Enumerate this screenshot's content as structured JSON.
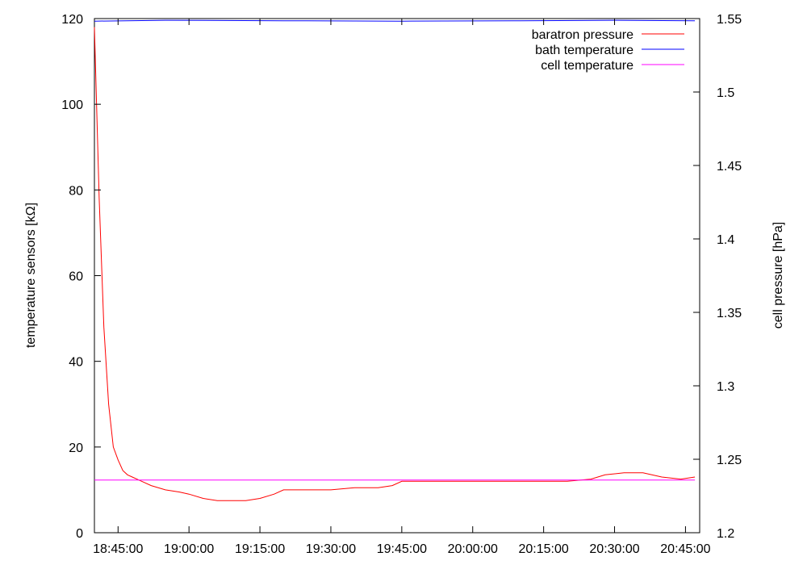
{
  "chart_data": {
    "type": "line",
    "xlabel": "",
    "ylabel": "temperature sensors [kΩ]",
    "y2label": "cell pressure [hPa]",
    "xlim": [
      "18:40:00",
      "20:48:00"
    ],
    "ylim": [
      0,
      120
    ],
    "y2lim": [
      1.2,
      1.55
    ],
    "x_ticks": [
      "18:45:00",
      "19:00:00",
      "19:15:00",
      "19:30:00",
      "19:45:00",
      "20:00:00",
      "20:15:00",
      "20:30:00",
      "20:45:00"
    ],
    "y_ticks": [
      "0",
      "20",
      "40",
      "60",
      "80",
      "100",
      "120"
    ],
    "y2_ticks": [
      "1.2",
      "1.25",
      "1.3",
      "1.35",
      "1.4",
      "1.45",
      "1.5",
      "1.55"
    ],
    "grid": false,
    "legend_position": "top-right",
    "series": [
      {
        "name": "baratron pressure",
        "color": "#ff0000",
        "axis": "y",
        "x": [
          "18:40:00",
          "18:41:00",
          "18:42:00",
          "18:43:00",
          "18:44:00",
          "18:45:00",
          "18:46:00",
          "18:47:00",
          "18:48:00",
          "18:50:00",
          "18:52:00",
          "18:55:00",
          "18:58:00",
          "19:00:00",
          "19:03:00",
          "19:06:00",
          "19:09:00",
          "19:12:00",
          "19:15:00",
          "19:18:00",
          "19:20:00",
          "19:25:00",
          "19:30:00",
          "19:35:00",
          "19:40:00",
          "19:43:00",
          "19:45:00",
          "19:50:00",
          "19:55:00",
          "20:00:00",
          "20:05:00",
          "20:10:00",
          "20:15:00",
          "20:20:00",
          "20:25:00",
          "20:28:00",
          "20:32:00",
          "20:36:00",
          "20:40:00",
          "20:44:00",
          "20:47:00"
        ],
        "values": [
          118,
          78,
          48,
          30,
          20,
          17,
          14.5,
          13.5,
          13,
          12,
          11,
          10,
          9.5,
          9,
          8,
          7.5,
          7.5,
          7.5,
          8,
          9,
          10,
          10,
          10,
          10.5,
          10.5,
          11,
          12,
          12,
          12,
          12,
          12,
          12,
          12,
          12,
          12.5,
          13.5,
          14,
          14,
          13,
          12.5,
          13
        ]
      },
      {
        "name": "bath temperature",
        "color": "#0000ff",
        "axis": "y",
        "x": [
          "18:40:00",
          "18:55:00",
          "19:20:00",
          "19:45:00",
          "20:10:00",
          "20:30:00",
          "20:47:00"
        ],
        "values": [
          119.4,
          119.6,
          119.5,
          119.4,
          119.5,
          119.6,
          119.5
        ]
      },
      {
        "name": "cell temperature",
        "color": "#ff00ff",
        "axis": "y",
        "x": [
          "18:40:00",
          "20:47:00"
        ],
        "values": [
          12.3,
          12.3
        ]
      }
    ]
  }
}
